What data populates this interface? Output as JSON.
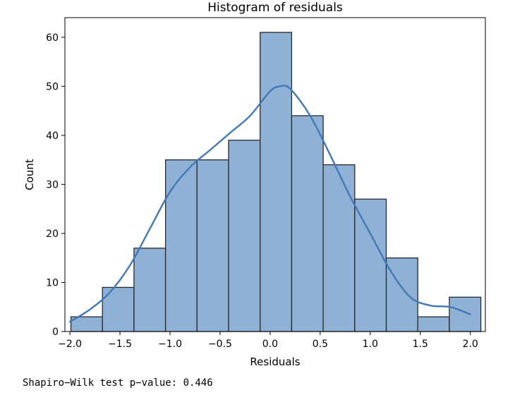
{
  "chart_data": {
    "type": "bar",
    "title": "Histogram of residuals",
    "xlabel": "Residuals",
    "ylabel": "Count",
    "xlim": [
      -2.05,
      2.15
    ],
    "ylim": [
      0,
      64
    ],
    "x_ticks": [
      -2.0,
      -1.5,
      -1.0,
      -0.5,
      0.0,
      0.5,
      1.0,
      1.5,
      2.0
    ],
    "x_tick_labels": [
      "−2.0",
      "−1.5",
      "−1.0",
      "−0.5",
      "0.0",
      "0.5",
      "1.0",
      "1.5",
      "2.0"
    ],
    "y_ticks": [
      0,
      10,
      20,
      30,
      40,
      50,
      60
    ],
    "y_tick_labels": [
      "0",
      "10",
      "20",
      "30",
      "40",
      "50",
      "60"
    ],
    "grid": false,
    "bins": [
      {
        "x0": -1.99,
        "x1": -1.675,
        "count": 3
      },
      {
        "x0": -1.675,
        "x1": -1.36,
        "count": 9
      },
      {
        "x0": -1.36,
        "x1": -1.045,
        "count": 17
      },
      {
        "x0": -1.045,
        "x1": -0.73,
        "count": 35
      },
      {
        "x0": -0.73,
        "x1": -0.415,
        "count": 35
      },
      {
        "x0": -0.415,
        "x1": -0.1,
        "count": 39
      },
      {
        "x0": -0.1,
        "x1": 0.215,
        "count": 61
      },
      {
        "x0": 0.215,
        "x1": 0.53,
        "count": 44
      },
      {
        "x0": 0.53,
        "x1": 0.845,
        "count": 34
      },
      {
        "x0": 0.845,
        "x1": 1.16,
        "count": 27
      },
      {
        "x0": 1.16,
        "x1": 1.475,
        "count": 15
      },
      {
        "x0": 1.475,
        "x1": 1.79,
        "count": 3
      },
      {
        "x0": 1.79,
        "x1": 2.105,
        "count": 7
      }
    ],
    "kde": {
      "x": [
        -2.0,
        -1.8,
        -1.6,
        -1.4,
        -1.2,
        -1.0,
        -0.8,
        -0.6,
        -0.4,
        -0.2,
        0.0,
        0.1,
        0.2,
        0.4,
        0.6,
        0.8,
        1.0,
        1.2,
        1.4,
        1.6,
        1.8,
        2.0
      ],
      "y": [
        2.0,
        4.5,
        8.0,
        13.5,
        21.0,
        28.5,
        33.5,
        37.0,
        40.5,
        44.0,
        49.0,
        50.0,
        49.5,
        44.0,
        36.0,
        27.5,
        20.0,
        12.5,
        7.0,
        5.3,
        5.0,
        3.5
      ]
    },
    "colors": {
      "bar_fill": "#8fb1d6",
      "bar_edge": "#2a2a2a",
      "kde_line": "#4278b5"
    }
  },
  "output": {
    "text": "Shapiro−Wilk test p−value: 0.446"
  }
}
